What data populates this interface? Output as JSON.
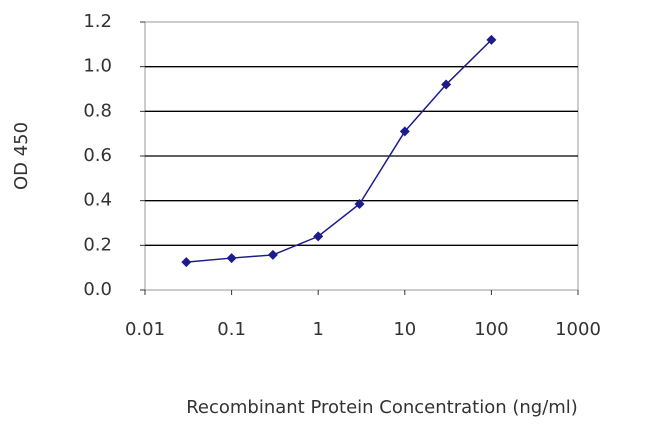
{
  "chart_data": {
    "type": "line",
    "xlabel": "Recombinant Protein Concentration (ng/ml)",
    "ylabel": "OD 450",
    "xscale": "log",
    "grid": true,
    "x": [
      0.03,
      0.1,
      0.3,
      1,
      3,
      10,
      30,
      100
    ],
    "series": [
      {
        "color": "#1c1c8c",
        "values": [
          0.125,
          0.143,
          0.157,
          0.24,
          0.385,
          0.71,
          0.92,
          1.12
        ]
      }
    ],
    "xlim": [
      0.01,
      1000
    ],
    "xticks": [
      0.01,
      0.1,
      1,
      10,
      100,
      1000
    ],
    "ylim": [
      0,
      1.2
    ],
    "yticks": [
      {
        "value": 0,
        "label": "0.0"
      },
      0.2,
      0.4,
      0.6,
      0.8,
      {
        "value": 1,
        "label": "1.0"
      },
      1.2
    ]
  }
}
